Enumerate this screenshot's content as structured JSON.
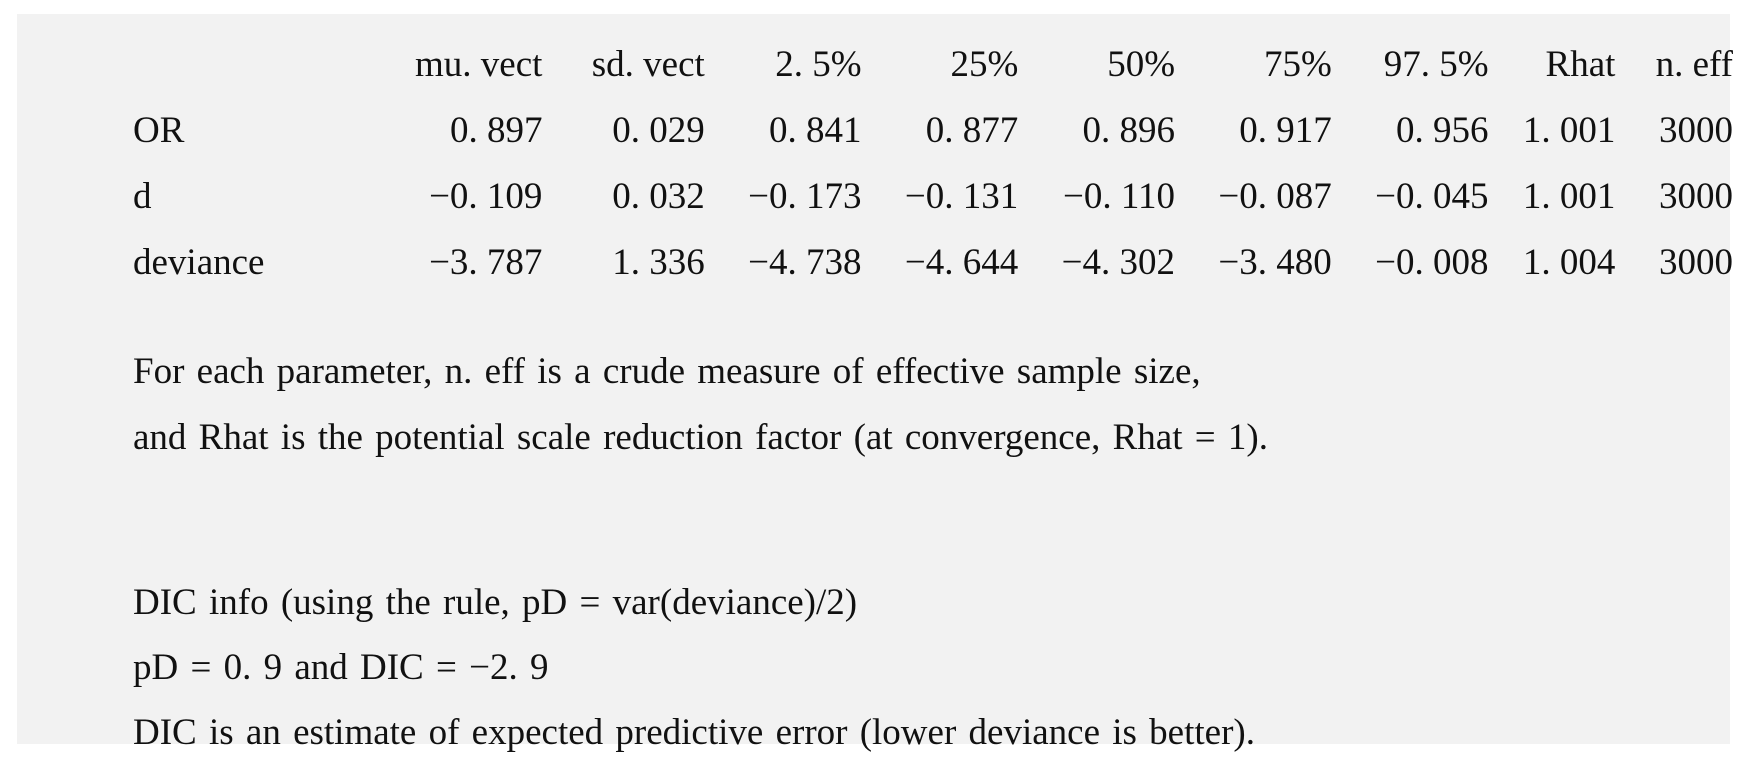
{
  "summary_table": {
    "columns": [
      "mu. vect",
      "sd. vect",
      "2. 5%",
      "25%",
      "50%",
      "75%",
      "97. 5%",
      "Rhat",
      "n. eff"
    ],
    "rows": [
      {
        "label": "OR",
        "values": [
          "0. 897",
          "0. 029",
          "0. 841",
          "0. 877",
          "0. 896",
          "0. 917",
          "0. 956",
          "1. 001",
          "3000"
        ]
      },
      {
        "label": "d",
        "values": [
          "−0. 109",
          "0. 032",
          "−0. 173",
          "−0. 131",
          "−0. 110",
          "−0. 087",
          "−0. 045",
          "1. 001",
          "3000"
        ]
      },
      {
        "label": "deviance",
        "values": [
          "−3. 787",
          "1. 336",
          "−4. 738",
          "−4. 644",
          "−4. 302",
          "−3. 480",
          "−0. 008",
          "1. 004",
          "3000"
        ]
      }
    ]
  },
  "notes": {
    "line1": "For each parameter, n. eff is a crude measure of effective sample size,",
    "line2": "and Rhat is the potential scale reduction factor (at convergence, Rhat = 1).",
    "line3": "DIC info (using the rule, pD = var(deviance)/2)",
    "line4": "pD = 0. 9 and DIC = −2. 9",
    "line5": "DIC is an estimate of expected predictive error (lower deviance is better)."
  },
  "colors": {
    "panel_background": "#f2f2f2",
    "text": "#111111"
  }
}
